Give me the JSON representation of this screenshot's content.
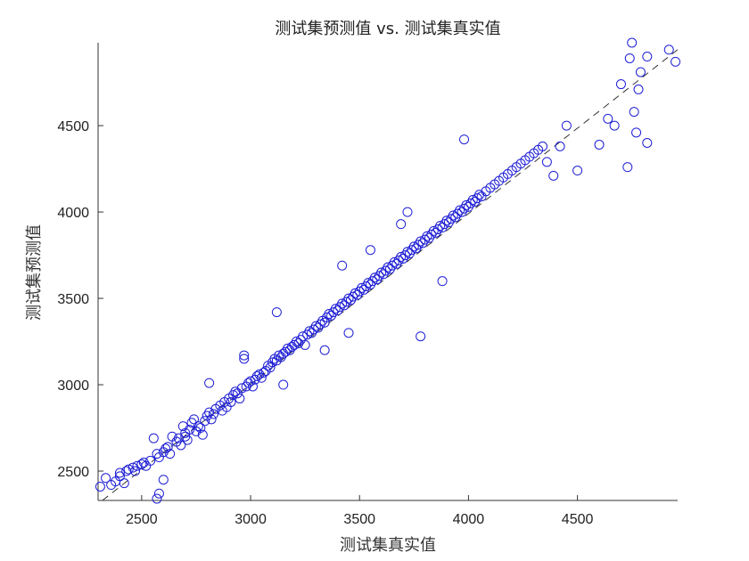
{
  "chart_data": {
    "type": "scatter",
    "title": "测试集预测值 vs. 测试集真实值",
    "xlabel": "测试集真实值",
    "ylabel": "测试集预测值",
    "xlim": [
      2300,
      4960
    ],
    "ylim": [
      2330,
      4980
    ],
    "xticks": [
      2500,
      3000,
      3500,
      4000,
      4500
    ],
    "yticks": [
      2500,
      3000,
      3500,
      4000,
      4500
    ],
    "grid": false,
    "colors": {
      "marker": "#1f1fd6",
      "axis": "#333333"
    },
    "reference_line": {
      "x": [
        2320,
        4960
      ],
      "y": [
        2330,
        4940
      ]
    },
    "points": [
      [
        2310,
        2410
      ],
      [
        2335,
        2460
      ],
      [
        2360,
        2420
      ],
      [
        2380,
        2440
      ],
      [
        2400,
        2470
      ],
      [
        2400,
        2490
      ],
      [
        2420,
        2430
      ],
      [
        2430,
        2500
      ],
      [
        2440,
        2510
      ],
      [
        2460,
        2520
      ],
      [
        2470,
        2500
      ],
      [
        2480,
        2530
      ],
      [
        2500,
        2540
      ],
      [
        2510,
        2550
      ],
      [
        2520,
        2530
      ],
      [
        2540,
        2560
      ],
      [
        2555,
        2690
      ],
      [
        2570,
        2600
      ],
      [
        2580,
        2580
      ],
      [
        2600,
        2610
      ],
      [
        2600,
        2450
      ],
      [
        2610,
        2630
      ],
      [
        2620,
        2640
      ],
      [
        2630,
        2600
      ],
      [
        2640,
        2700
      ],
      [
        2660,
        2670
      ],
      [
        2670,
        2690
      ],
      [
        2680,
        2650
      ],
      [
        2690,
        2760
      ],
      [
        2700,
        2720
      ],
      [
        2700,
        2700
      ],
      [
        2710,
        2680
      ],
      [
        2720,
        2740
      ],
      [
        2730,
        2780
      ],
      [
        2740,
        2800
      ],
      [
        2750,
        2730
      ],
      [
        2760,
        2760
      ],
      [
        2770,
        2750
      ],
      [
        2780,
        2710
      ],
      [
        2790,
        2790
      ],
      [
        2800,
        2820
      ],
      [
        2810,
        2840
      ],
      [
        2810,
        3010
      ],
      [
        2820,
        2800
      ],
      [
        2830,
        2830
      ],
      [
        2840,
        2860
      ],
      [
        2860,
        2880
      ],
      [
        2870,
        2850
      ],
      [
        2880,
        2900
      ],
      [
        2890,
        2870
      ],
      [
        2900,
        2920
      ],
      [
        2910,
        2900
      ],
      [
        2920,
        2940
      ],
      [
        2930,
        2960
      ],
      [
        2940,
        2950
      ],
      [
        2950,
        2920
      ],
      [
        2960,
        2980
      ],
      [
        2970,
        3170
      ],
      [
        2970,
        3150
      ],
      [
        2980,
        2990
      ],
      [
        2990,
        3010
      ],
      [
        3000,
        3020
      ],
      [
        3010,
        2990
      ],
      [
        3020,
        3030
      ],
      [
        3030,
        3050
      ],
      [
        3040,
        3060
      ],
      [
        3050,
        3040
      ],
      [
        3060,
        3070
      ],
      [
        3070,
        3080
      ],
      [
        3080,
        3110
      ],
      [
        3090,
        3100
      ],
      [
        3100,
        3130
      ],
      [
        3110,
        3150
      ],
      [
        3120,
        3140
      ],
      [
        3130,
        3170
      ],
      [
        3140,
        3160
      ],
      [
        3150,
        3000
      ],
      [
        3150,
        3180
      ],
      [
        3160,
        3190
      ],
      [
        3170,
        3210
      ],
      [
        3180,
        3200
      ],
      [
        3190,
        3220
      ],
      [
        3200,
        3230
      ],
      [
        3210,
        3250
      ],
      [
        3220,
        3240
      ],
      [
        3230,
        3260
      ],
      [
        3240,
        3280
      ],
      [
        3250,
        3230
      ],
      [
        3260,
        3290
      ],
      [
        3270,
        3310
      ],
      [
        3280,
        3300
      ],
      [
        3290,
        3320
      ],
      [
        3300,
        3340
      ],
      [
        3310,
        3330
      ],
      [
        3320,
        3350
      ],
      [
        3330,
        3370
      ],
      [
        3340,
        3360
      ],
      [
        3340,
        3200
      ],
      [
        3350,
        3390
      ],
      [
        3360,
        3410
      ],
      [
        3370,
        3400
      ],
      [
        3380,
        3420
      ],
      [
        3390,
        3440
      ],
      [
        3400,
        3430
      ],
      [
        3410,
        3450
      ],
      [
        3420,
        3470
      ],
      [
        3430,
        3460
      ],
      [
        3440,
        3480
      ],
      [
        3450,
        3500
      ],
      [
        3460,
        3490
      ],
      [
        3470,
        3510
      ],
      [
        3480,
        3530
      ],
      [
        3490,
        3520
      ],
      [
        3500,
        3540
      ],
      [
        3510,
        3560
      ],
      [
        3520,
        3550
      ],
      [
        3530,
        3570
      ],
      [
        3540,
        3590
      ],
      [
        3550,
        3580
      ],
      [
        3560,
        3600
      ],
      [
        3570,
        3620
      ],
      [
        3580,
        3610
      ],
      [
        3590,
        3630
      ],
      [
        3600,
        3650
      ],
      [
        3610,
        3640
      ],
      [
        3620,
        3660
      ],
      [
        3630,
        3680
      ],
      [
        3640,
        3670
      ],
      [
        3650,
        3690
      ],
      [
        3660,
        3710
      ],
      [
        3670,
        3700
      ],
      [
        3680,
        3720
      ],
      [
        3690,
        3740
      ],
      [
        3700,
        3730
      ],
      [
        3710,
        3750
      ],
      [
        3720,
        3770
      ],
      [
        3730,
        3760
      ],
      [
        3740,
        3780
      ],
      [
        3750,
        3800
      ],
      [
        3760,
        3790
      ],
      [
        3770,
        3810
      ],
      [
        3780,
        3830
      ],
      [
        3780,
        3280
      ],
      [
        3790,
        3820
      ],
      [
        3800,
        3840
      ],
      [
        3810,
        3860
      ],
      [
        3820,
        3850
      ],
      [
        3830,
        3870
      ],
      [
        3840,
        3890
      ],
      [
        3850,
        3880
      ],
      [
        3860,
        3900
      ],
      [
        3870,
        3920
      ],
      [
        3880,
        3910
      ],
      [
        3890,
        3930
      ],
      [
        3900,
        3950
      ],
      [
        3910,
        3940
      ],
      [
        3920,
        3960
      ],
      [
        3930,
        3980
      ],
      [
        3940,
        3970
      ],
      [
        3950,
        3990
      ],
      [
        3960,
        4010
      ],
      [
        3970,
        4000
      ],
      [
        3980,
        4420
      ],
      [
        3980,
        4020
      ],
      [
        3990,
        4040
      ],
      [
        4000,
        4030
      ],
      [
        4010,
        4050
      ],
      [
        4020,
        4070
      ],
      [
        4030,
        4060
      ],
      [
        4040,
        4080
      ],
      [
        4050,
        4100
      ],
      [
        4060,
        4090
      ],
      [
        4080,
        4120
      ],
      [
        4100,
        4140
      ],
      [
        4120,
        4160
      ],
      [
        4140,
        4180
      ],
      [
        4160,
        4200
      ],
      [
        4180,
        4220
      ],
      [
        4200,
        4240
      ],
      [
        4220,
        4260
      ],
      [
        4240,
        4280
      ],
      [
        4260,
        4300
      ],
      [
        4280,
        4320
      ],
      [
        4300,
        4340
      ],
      [
        4320,
        4360
      ],
      [
        4340,
        4380
      ],
      [
        4360,
        4290
      ],
      [
        4390,
        4210
      ],
      [
        4420,
        4380
      ],
      [
        4450,
        4500
      ],
      [
        4500,
        4240
      ],
      [
        4600,
        4390
      ],
      [
        4640,
        4540
      ],
      [
        4670,
        4500
      ],
      [
        4700,
        4740
      ],
      [
        4730,
        4260
      ],
      [
        4740,
        4890
      ],
      [
        4750,
        4980
      ],
      [
        4760,
        4580
      ],
      [
        4770,
        4460
      ],
      [
        4780,
        4710
      ],
      [
        4790,
        4810
      ],
      [
        4820,
        4900
      ],
      [
        4820,
        4400
      ],
      [
        4920,
        4940
      ],
      [
        4950,
        4870
      ],
      [
        3720,
        4000
      ],
      [
        3690,
        3930
      ],
      [
        3880,
        3600
      ],
      [
        3550,
        3780
      ],
      [
        2580,
        2370
      ],
      [
        2570,
        2340
      ],
      [
        3120,
        3420
      ],
      [
        3420,
        3690
      ],
      [
        3450,
        3300
      ]
    ]
  }
}
